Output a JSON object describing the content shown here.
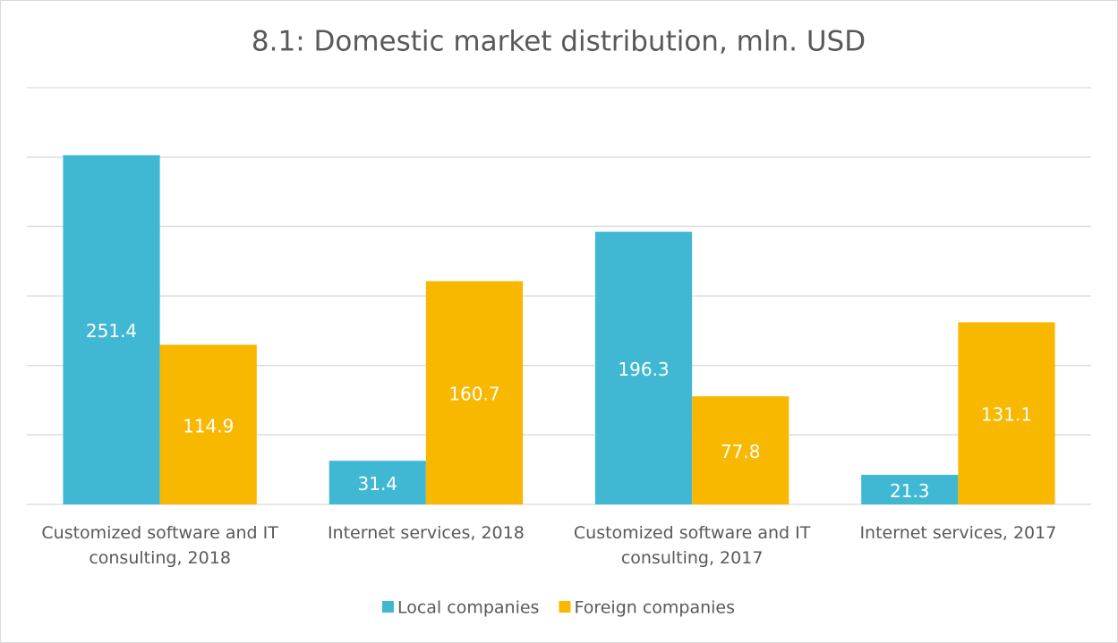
{
  "chart_data": {
    "type": "bar",
    "title": "8.1: Domestic market distribution, mln. USD",
    "categories": [
      "Customized software and IT consulting, 2018",
      "Internet services, 2018",
      "Customized software and IT consulting, 2017",
      "Internet services, 2017"
    ],
    "series": [
      {
        "name": "Local companies",
        "color": "#41b8d3",
        "values": [
          251.4,
          31.4,
          196.3,
          21.3
        ]
      },
      {
        "name": "Foreign companies",
        "color": "#f9b800",
        "values": [
          114.9,
          160.7,
          77.8,
          131.1
        ]
      }
    ],
    "ylim": [
      0,
      300
    ],
    "yticks": [
      0,
      50,
      100,
      150,
      200,
      250,
      300
    ],
    "grid": true,
    "legend": "bottom"
  }
}
